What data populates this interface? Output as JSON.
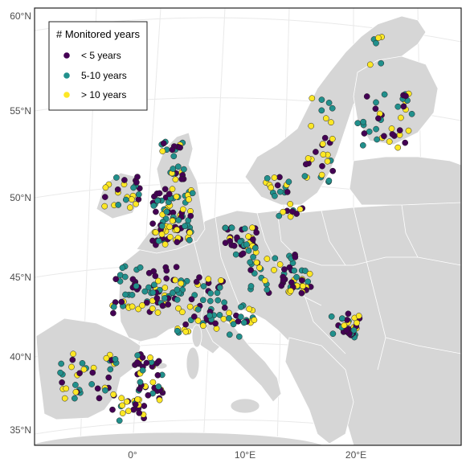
{
  "map": {
    "y_axis_labels": [
      "60°N",
      "55°N",
      "50°N",
      "45°N",
      "40°N",
      "35°N"
    ],
    "x_axis_labels": [
      "0°",
      "10°E",
      "20°E"
    ],
    "colors": {
      "land": "#d6d6d6",
      "land_border": "#ffffff",
      "sea": "#ffffff",
      "graticule": "#e9e9e9",
      "frame": "#222222"
    }
  },
  "legend": {
    "title": "# Monitored years",
    "items": [
      {
        "label": "< 5 years",
        "color": "#440154"
      },
      {
        "label": "5-10 years",
        "color": "#21908C"
      },
      {
        "label": "> 10 years",
        "color": "#FDE725"
      }
    ]
  },
  "chart_data": {
    "type": "scatter",
    "series": [
      {
        "name": "< 5 years",
        "color": "#440154"
      },
      {
        "name": "5-10 years",
        "color": "#21908C"
      },
      {
        "name": "> 10 years",
        "color": "#FDE725"
      }
    ]
  }
}
